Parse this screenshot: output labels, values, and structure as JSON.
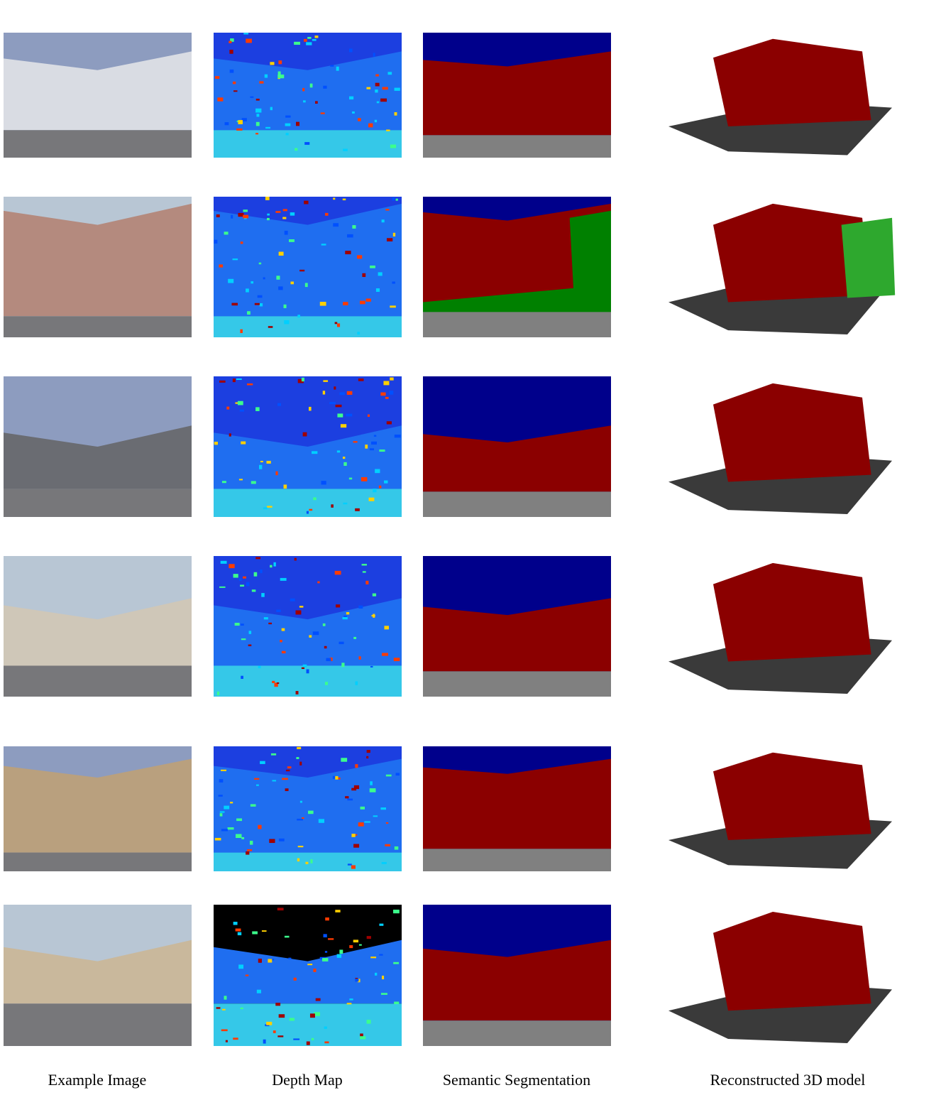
{
  "captions": [
    "Example Image",
    "Depth Map",
    "Semantic Segmentation",
    "Reconstructed 3D model"
  ]
}
